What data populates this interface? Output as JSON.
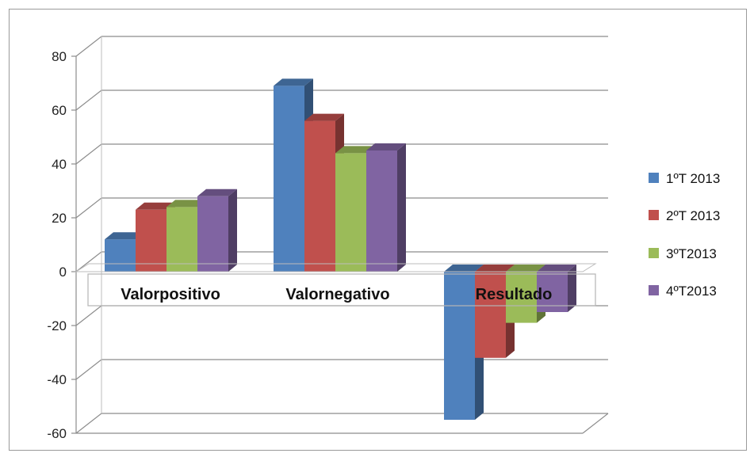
{
  "chart_data": {
    "type": "bar",
    "title": "",
    "xlabel": "",
    "ylabel": "",
    "ylim": [
      -60,
      80
    ],
    "yticks": [
      -60,
      -40,
      -20,
      0,
      20,
      40,
      60,
      80
    ],
    "ytick_labels": [
      "-60",
      "-40",
      "-20",
      "0",
      "20",
      "40",
      "60",
      "80"
    ],
    "categories": [
      "Valorpositivo",
      "Valornegativo",
      "Resultado"
    ],
    "series": [
      {
        "name": "1ºT 2013",
        "values": [
          12,
          69,
          -55
        ],
        "color": "#4f81bd"
      },
      {
        "name": "2ºT 2013",
        "values": [
          23,
          56,
          -32
        ],
        "color": "#c0504d"
      },
      {
        "name": "3ºT2013",
        "values": [
          24,
          44,
          -19
        ],
        "color": "#9bbb59"
      },
      {
        "name": "4ºT2013",
        "values": [
          28,
          45,
          -15
        ],
        "color": "#8064a2"
      }
    ],
    "grid": true,
    "legend_position": "right",
    "style": "3d-clustered-column"
  }
}
